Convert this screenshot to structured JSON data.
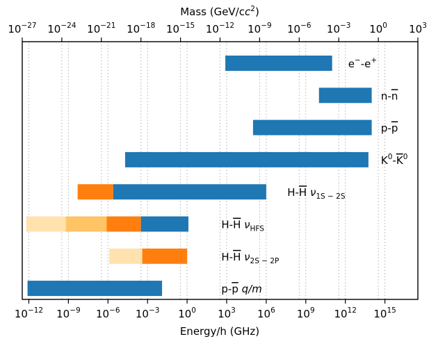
{
  "chart_data": {
    "type": "bar",
    "orientation": "horizontal",
    "bar_scale": "log",
    "xlabel": "Energy/h (GHz)",
    "top_label": "Mass (GeV/c",
    "top_label_sup": "2",
    "top_label_close": ")",
    "xlim_log10": [
      -12.5,
      17.5
    ],
    "top_ticks": [
      {
        "base": "10",
        "exp": "−27"
      },
      {
        "base": "10",
        "exp": "−24"
      },
      {
        "base": "10",
        "exp": "−21"
      },
      {
        "base": "10",
        "exp": "−18"
      },
      {
        "base": "10",
        "exp": "−15"
      },
      {
        "base": "10",
        "exp": "−12"
      },
      {
        "base": "10",
        "exp": "−9"
      },
      {
        "base": "10",
        "exp": "−6"
      },
      {
        "base": "10",
        "exp": "−3"
      },
      {
        "base": "10",
        "exp": "0"
      },
      {
        "base": "10",
        "exp": "3"
      }
    ],
    "bottom_ticks": [
      {
        "base": "10",
        "exp": "−12"
      },
      {
        "base": "10",
        "exp": "−9"
      },
      {
        "base": "10",
        "exp": "−6"
      },
      {
        "base": "10",
        "exp": "−3"
      },
      {
        "base": "10",
        "exp": "0"
      },
      {
        "base": "10",
        "exp": "3"
      },
      {
        "base": "10",
        "exp": "6"
      },
      {
        "base": "10",
        "exp": "9"
      },
      {
        "base": "10",
        "exp": "12"
      },
      {
        "base": "10",
        "exp": "15"
      }
    ],
    "grid": "vertical dotted",
    "colors": {
      "blue": "#1f77b4",
      "orange": "#ff7f0e",
      "light_orange": "#ffc466",
      "pale_orange": "#ffe2ae"
    },
    "rows": [
      {
        "label_parts": [
          {
            "t": "e"
          },
          {
            "t": "−",
            "sup": true
          },
          {
            "t": "-e"
          },
          {
            "t": "+",
            "sup": true
          }
        ],
        "label_anchor": "end",
        "label_log10": 14.4,
        "segments": [
          {
            "from": 2.9,
            "to": 11.0,
            "color": "blue"
          }
        ]
      },
      {
        "label_parts": [
          {
            "t": "n-"
          },
          {
            "t": "n",
            "over": true
          }
        ],
        "label_anchor": "start",
        "label_log10": 14.7,
        "segments": [
          {
            "from": 10.0,
            "to": 14.0,
            "color": "blue"
          }
        ]
      },
      {
        "label_parts": [
          {
            "t": "p-"
          },
          {
            "t": "p",
            "over": true
          }
        ],
        "label_anchor": "start",
        "label_log10": 14.7,
        "segments": [
          {
            "from": 5.0,
            "to": 14.0,
            "color": "blue"
          }
        ]
      },
      {
        "label_parts": [
          {
            "t": "K"
          },
          {
            "t": "0",
            "sup": true
          },
          {
            "t": "-"
          },
          {
            "t": "K",
            "over": true
          },
          {
            "t": "0",
            "sup": true
          }
        ],
        "label_anchor": "start",
        "label_log10": 14.7,
        "segments": [
          {
            "from": -4.7,
            "to": 13.75,
            "color": "blue"
          }
        ]
      },
      {
        "label_parts": [
          {
            "t": "H-"
          },
          {
            "t": "H",
            "over": true
          },
          {
            "t": " ν",
            "italic": true
          },
          {
            "t": "1S − 2S",
            "sub": true
          }
        ],
        "label_anchor": "start",
        "label_log10": 7.6,
        "segments": [
          {
            "from": -8.3,
            "to": -5.6,
            "color": "orange"
          },
          {
            "from": -5.6,
            "to": 6.0,
            "color": "blue"
          }
        ]
      },
      {
        "label_parts": [
          {
            "t": "H-"
          },
          {
            "t": "H",
            "over": true
          },
          {
            "t": " ν",
            "italic": true
          },
          {
            "t": "HFS",
            "sub": true
          }
        ],
        "label_anchor": "start",
        "label_log10": 2.6,
        "segments": [
          {
            "from": -12.2,
            "to": -9.2,
            "color": "pale_orange"
          },
          {
            "from": -9.2,
            "to": -6.1,
            "color": "light_orange"
          },
          {
            "from": -6.1,
            "to": -3.5,
            "color": "orange"
          },
          {
            "from": -3.5,
            "to": 0.1,
            "color": "blue"
          }
        ]
      },
      {
        "label_parts": [
          {
            "t": "H-"
          },
          {
            "t": "H",
            "over": true
          },
          {
            "t": " ν",
            "italic": true
          },
          {
            "t": "2S − 2P",
            "sub": true
          }
        ],
        "label_anchor": "start",
        "label_log10": 2.6,
        "segments": [
          {
            "from": -5.9,
            "to": -3.4,
            "color": "pale_orange"
          },
          {
            "from": -3.4,
            "to": 0.0,
            "color": "orange"
          }
        ]
      },
      {
        "label_parts": [
          {
            "t": "p-"
          },
          {
            "t": "p",
            "over": true
          },
          {
            "t": " q/m",
            "italic": true
          }
        ],
        "label_anchor": "start",
        "label_log10": 2.6,
        "segments": [
          {
            "from": -12.1,
            "to": -1.9,
            "color": "blue"
          }
        ]
      }
    ]
  }
}
